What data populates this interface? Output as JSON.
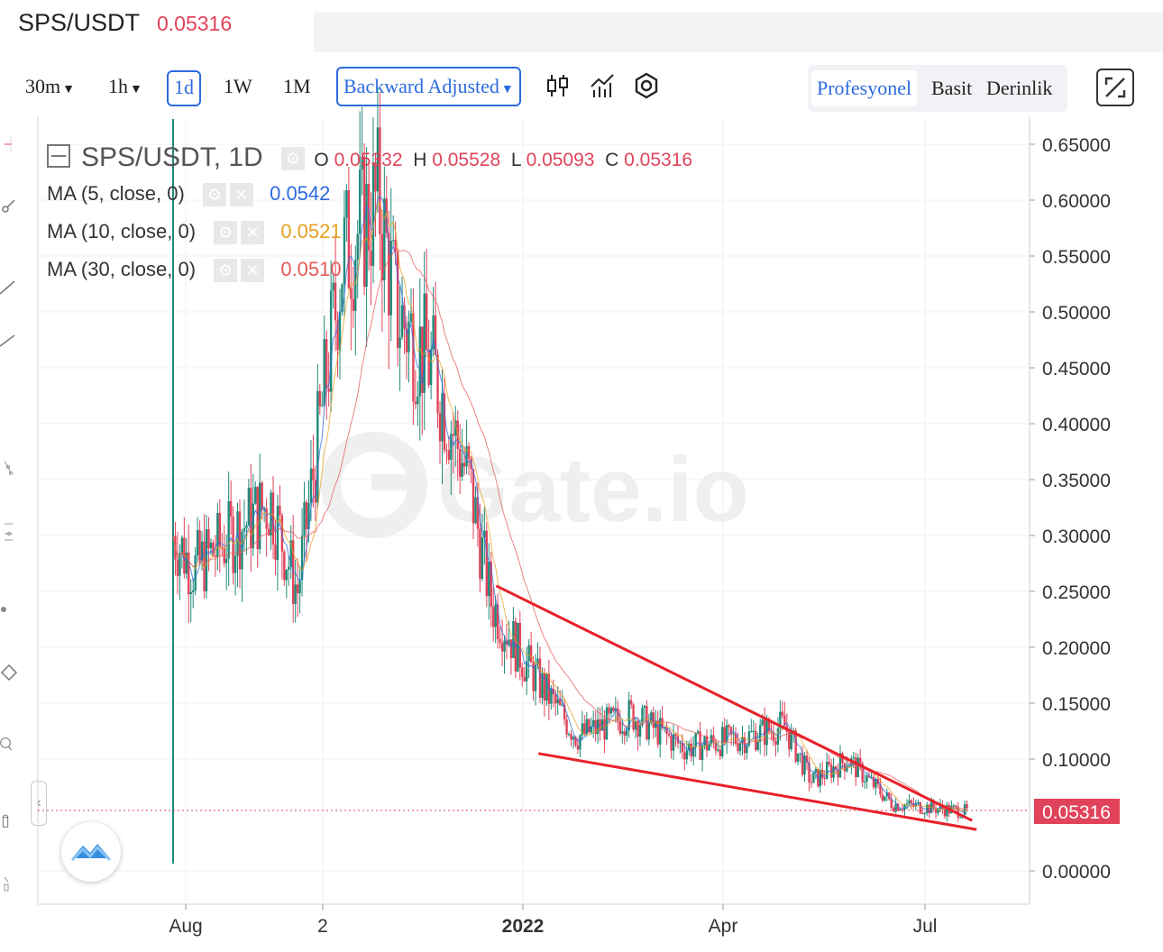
{
  "header": {
    "pair": "SPS/USDT",
    "price": "0.05316"
  },
  "toolbar": {
    "intervals": [
      "30m",
      "1h",
      "1d",
      "1W",
      "1M"
    ],
    "active_interval": "1d",
    "adjust_label": "Backward Adjusted",
    "modes": [
      "Profesyonel",
      "Basit",
      "Derinlik"
    ],
    "active_mode": "Profesyonel",
    "icons": [
      "candlestick-type-icon",
      "indicators-icon",
      "settings-icon",
      "fullscreen-icon"
    ]
  },
  "legend": {
    "title": "SPS/USDT, 1D",
    "ohlc": {
      "o_label": "O",
      "o": "0.05332",
      "h_label": "H",
      "h": "0.05528",
      "l_label": "L",
      "l": "0.05093",
      "c_label": "C",
      "c": "0.05316"
    },
    "ma": [
      {
        "label": "MA (5, close, 0)",
        "value": "0.0542",
        "color": "#2d6ae0"
      },
      {
        "label": "MA (10, close, 0)",
        "value": "0.0521",
        "color": "#e6a020"
      },
      {
        "label": "MA (30, close, 0)",
        "value": "0.0510",
        "color": "#e55a5a"
      }
    ]
  },
  "watermark": "Gate.io",
  "chart_data": {
    "type": "candlestick",
    "interval": "1D",
    "y_ticks": [
      "0.65000",
      "0.60000",
      "0.55000",
      "0.50000",
      "0.45000",
      "0.40000",
      "0.35000",
      "0.30000",
      "0.25000",
      "0.20000",
      "0.15000",
      "0.10000",
      "0.00000"
    ],
    "ylim": [
      0.0,
      0.65
    ],
    "x_ticks": [
      "Aug",
      "2",
      "2022",
      "Apr",
      "Jul"
    ],
    "last_price_label": "0.05316",
    "series_overview": [
      {
        "period": "late Jul",
        "close": 0.3
      },
      {
        "period": "Aug",
        "close": 0.27
      },
      {
        "period": "Sep",
        "close": 0.33
      },
      {
        "period": "late Sep",
        "close": 0.25
      },
      {
        "period": "early Oct",
        "close": 0.55
      },
      {
        "period": "mid Oct",
        "close": 0.6
      },
      {
        "period": "late Oct",
        "close": 0.5
      },
      {
        "period": "Nov",
        "close": 0.45
      },
      {
        "period": "late Nov",
        "close": 0.35
      },
      {
        "period": "Dec",
        "close": 0.24
      },
      {
        "period": "late Dec",
        "close": 0.19
      },
      {
        "period": "Jan",
        "close": 0.12
      },
      {
        "period": "Feb",
        "close": 0.14
      },
      {
        "period": "Mar",
        "close": 0.11
      },
      {
        "period": "Apr",
        "close": 0.12
      },
      {
        "period": "early May",
        "close": 0.13
      },
      {
        "period": "mid May",
        "close": 0.08
      },
      {
        "period": "late May",
        "close": 0.1
      },
      {
        "period": "Jun",
        "close": 0.06
      },
      {
        "period": "Jul",
        "close": 0.053
      }
    ],
    "trendlines": [
      {
        "name": "upper",
        "from": {
          "date": "2021-12-20",
          "price": 0.255
        },
        "to": {
          "date": "2022-07-22",
          "price": 0.045
        }
      },
      {
        "name": "lower",
        "from": {
          "date": "2022-01-08",
          "price": 0.105
        },
        "to": {
          "date": "2022-07-24",
          "price": 0.037
        }
      }
    ],
    "grid": true
  }
}
